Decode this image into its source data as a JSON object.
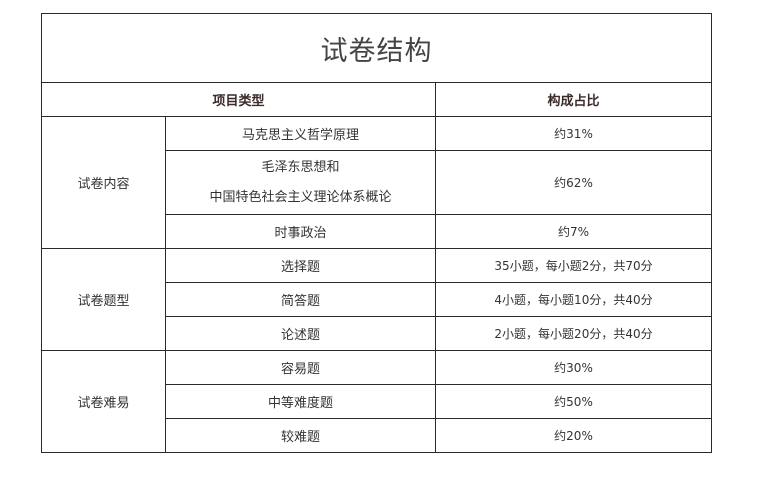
{
  "title": "试卷结构",
  "headers": {
    "item_type": "项目类型",
    "ratio": "构成占比"
  },
  "groups": [
    {
      "label": "试卷内容",
      "rows": [
        {
          "item": "马克思主义哲学原理",
          "value": "约31%"
        },
        {
          "item_line1": "毛泽东思想和",
          "item_line2": "中国特色社会主义理论体系概论",
          "value": "约62%"
        },
        {
          "item": "时事政治",
          "value": "约7%"
        }
      ]
    },
    {
      "label": "试卷题型",
      "rows": [
        {
          "item": "选择题",
          "value": "35小题，每小题2分，共70分"
        },
        {
          "item": "简答题",
          "value": "4小题，每小题10分，共40分"
        },
        {
          "item": "论述题",
          "value": "2小题，每小题20分，共40分"
        }
      ]
    },
    {
      "label": "试卷难易",
      "rows": [
        {
          "item": "容易题",
          "value": "约30%"
        },
        {
          "item": "中等难度题",
          "value": "约50%"
        },
        {
          "item": "较难题",
          "value": "约20%"
        }
      ]
    }
  ]
}
